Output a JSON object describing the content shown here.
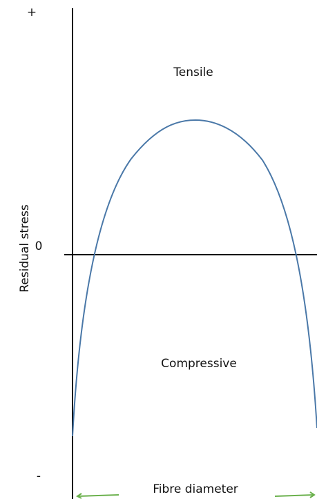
{
  "axis": {
    "top_label": "+",
    "zero_label": "0",
    "bottom_label": "-",
    "y_label": "Residual stress",
    "x_label": "Fibre diameter"
  },
  "regions": {
    "upper": "Tensile",
    "lower": "Compressive"
  }
}
